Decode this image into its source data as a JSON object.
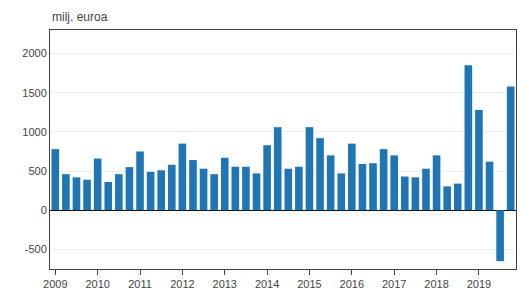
{
  "chart_data": {
    "type": "bar",
    "ylabel": "milj. euroa",
    "categories": [
      "2009",
      null,
      null,
      null,
      "2010",
      null,
      null,
      null,
      "2011",
      null,
      null,
      null,
      "2012",
      null,
      null,
      null,
      "2013",
      null,
      null,
      null,
      "2014",
      null,
      null,
      null,
      "2015",
      null,
      null,
      null,
      "2016",
      null,
      null,
      null,
      "2017",
      null,
      null,
      null,
      "2018",
      null,
      null,
      null,
      "2019",
      null,
      null,
      null
    ],
    "values": [
      780,
      460,
      420,
      390,
      660,
      360,
      460,
      550,
      750,
      490,
      510,
      580,
      850,
      640,
      530,
      460,
      670,
      555,
      555,
      470,
      830,
      1060,
      530,
      555,
      1060,
      920,
      700,
      470,
      850,
      590,
      600,
      780,
      700,
      430,
      420,
      530,
      700,
      305,
      340,
      1850,
      1280,
      620,
      -650,
      1580
    ],
    "color": "#2076b4",
    "ylim": [
      -750,
      2300
    ],
    "yticks": [
      -500,
      0,
      500,
      1000,
      1500,
      2000
    ],
    "grid": true
  }
}
